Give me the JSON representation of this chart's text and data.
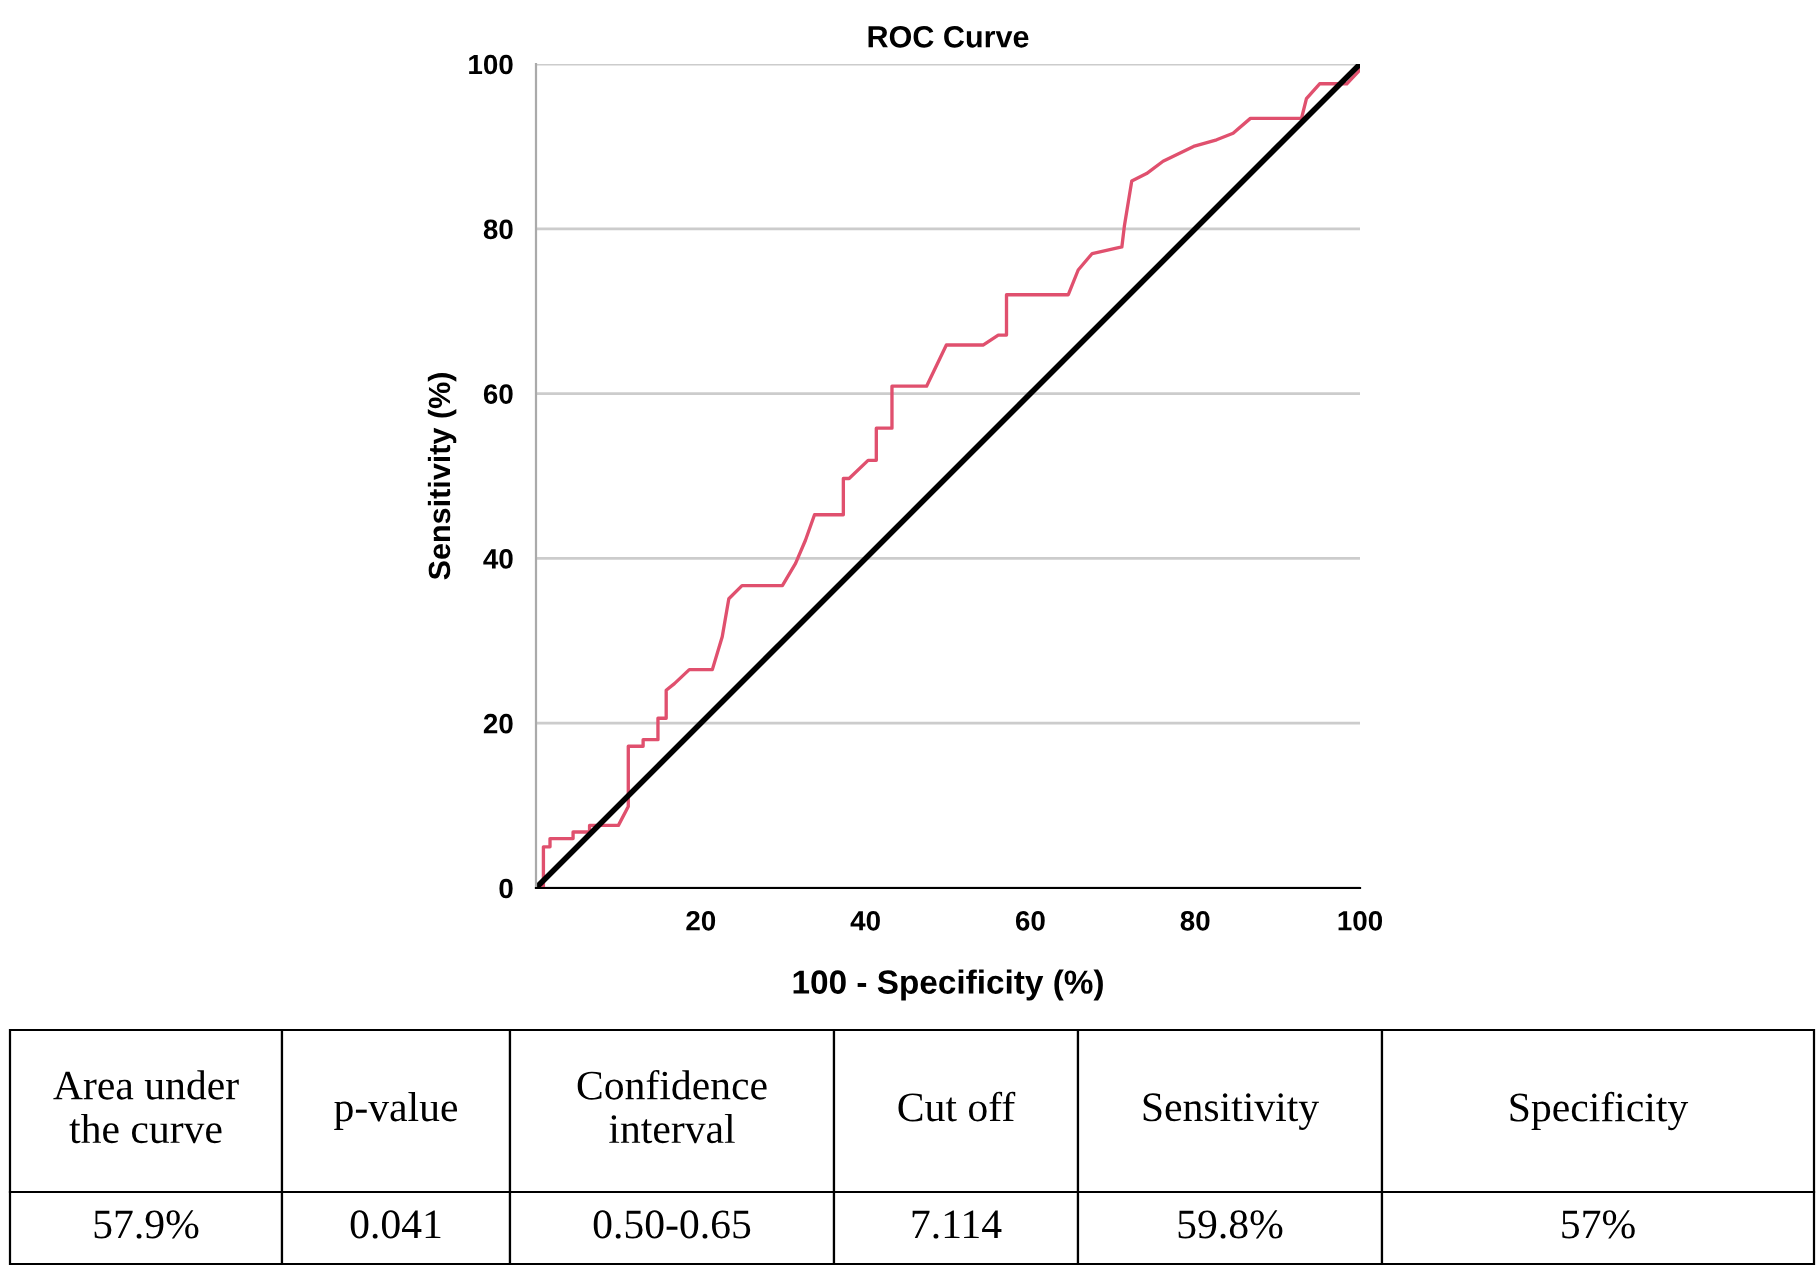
{
  "chart_data": {
    "type": "line",
    "title": "ROC Curve",
    "xlabel": "100 - Specificity (%)",
    "ylabel": "Sensitivity (%)",
    "xlim": [
      0,
      100
    ],
    "ylim": [
      0,
      100
    ],
    "xticks": [
      20,
      40,
      60,
      80,
      100
    ],
    "yticks": [
      0,
      20,
      40,
      60,
      80,
      100
    ],
    "grid": "y",
    "legend": false,
    "marker": "none",
    "line_style": "solid",
    "series": [
      {
        "color": "#e0506e",
        "x": [
          0,
          0.9,
          0.9,
          1.7,
          1.7,
          4.5,
          4.5,
          6.5,
          6.5,
          10,
          11.2,
          11.2,
          13,
          13,
          14.8,
          14.8,
          15.8,
          15.8,
          16.8,
          18.6,
          21.4,
          22.6,
          23.4,
          25,
          29.9,
          31.5,
          32.7,
          33.8,
          37.3,
          37.3,
          38,
          40.3,
          41.3,
          41.3,
          43.2,
          43.2,
          47.4,
          49.8,
          54.3,
          56.1,
          57.1,
          57.1,
          64.6,
          65.8,
          67.5,
          71.1,
          71.4,
          72.3,
          74.1,
          76.1,
          79.8,
          82.6,
          84.6,
          86.7,
          92.9,
          93.5,
          95.1,
          98.4,
          100,
          100
        ],
        "values": [
          0,
          0,
          5,
          5,
          6,
          6,
          6.8,
          6.8,
          7.6,
          7.6,
          9.9,
          17.2,
          17.2,
          18,
          18,
          20.6,
          20.6,
          24,
          24.8,
          26.5,
          26.5,
          30.5,
          35.1,
          36.7,
          36.7,
          39.4,
          42.2,
          45.3,
          45.3,
          49.7,
          49.7,
          51.9,
          51.9,
          55.8,
          55.8,
          60.9,
          60.9,
          65.9,
          65.9,
          67.1,
          67.1,
          72,
          72,
          75,
          77,
          77.8,
          80.3,
          85.8,
          86.7,
          88.2,
          90,
          90.8,
          91.6,
          93.4,
          93.4,
          95.8,
          97.6,
          97.6,
          99.3,
          100
        ]
      },
      {
        "color": "#000000",
        "x": [
          0,
          100
        ],
        "values": [
          0,
          100
        ]
      }
    ],
    "annotations": [
      "Area under\nthe curve",
      "p-value",
      "Confidence\ninterval",
      "Cut off",
      "Sensitivity",
      "Specificity",
      "57.9%",
      "0.041",
      "0.50-0.65",
      "7.114",
      "59.8%",
      "57%"
    ]
  }
}
